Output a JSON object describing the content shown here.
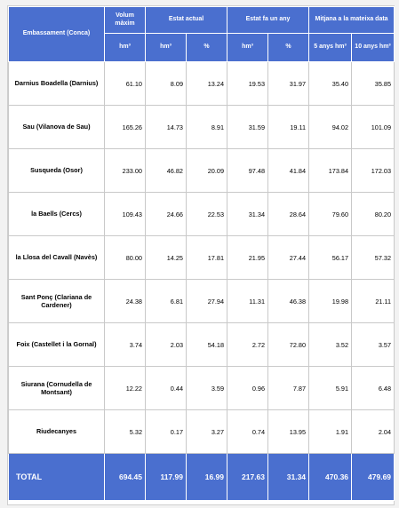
{
  "header": {
    "reservoir": "Embassament (Conca)",
    "max_volume": "Volum màxim",
    "current_state": "Estat actual",
    "year_ago": "Estat fa un any",
    "average": "Mitjana a la mateixa data",
    "unit_hm3": "hm³",
    "unit_pct": "%",
    "avg_5y": "5 anys hm³",
    "avg_10y": "10 anys hm³"
  },
  "rows": [
    {
      "name": "Darnius Boadella (Darnius)",
      "max": "61.10",
      "cur_hm3": "8.09",
      "cur_pct": "13.24",
      "ya_hm3": "19.53",
      "ya_pct": "31.97",
      "avg5": "35.40",
      "avg10": "35.85"
    },
    {
      "name": "Sau (Vilanova de Sau)",
      "max": "165.26",
      "cur_hm3": "14.73",
      "cur_pct": "8.91",
      "ya_hm3": "31.59",
      "ya_pct": "19.11",
      "avg5": "94.02",
      "avg10": "101.09"
    },
    {
      "name": "Susqueda (Osor)",
      "max": "233.00",
      "cur_hm3": "46.82",
      "cur_pct": "20.09",
      "ya_hm3": "97.48",
      "ya_pct": "41.84",
      "avg5": "173.84",
      "avg10": "172.03"
    },
    {
      "name": "la Baells (Cercs)",
      "max": "109.43",
      "cur_hm3": "24.66",
      "cur_pct": "22.53",
      "ya_hm3": "31.34",
      "ya_pct": "28.64",
      "avg5": "79.60",
      "avg10": "80.20"
    },
    {
      "name": "la Llosa del Cavall (Navès)",
      "max": "80.00",
      "cur_hm3": "14.25",
      "cur_pct": "17.81",
      "ya_hm3": "21.95",
      "ya_pct": "27.44",
      "avg5": "56.17",
      "avg10": "57.32"
    },
    {
      "name": "Sant Ponç (Clariana de Cardener)",
      "max": "24.38",
      "cur_hm3": "6.81",
      "cur_pct": "27.94",
      "ya_hm3": "11.31",
      "ya_pct": "46.38",
      "avg5": "19.98",
      "avg10": "21.11"
    },
    {
      "name": "Foix (Castellet i la Gornal)",
      "max": "3.74",
      "cur_hm3": "2.03",
      "cur_pct": "54.18",
      "ya_hm3": "2.72",
      "ya_pct": "72.80",
      "avg5": "3.52",
      "avg10": "3.57"
    },
    {
      "name": "Siurana (Cornudella de Montsant)",
      "max": "12.22",
      "cur_hm3": "0.44",
      "cur_pct": "3.59",
      "ya_hm3": "0.96",
      "ya_pct": "7.87",
      "avg5": "5.91",
      "avg10": "6.48"
    },
    {
      "name": "Riudecanyes",
      "max": "5.32",
      "cur_hm3": "0.17",
      "cur_pct": "3.27",
      "ya_hm3": "0.74",
      "ya_pct": "13.95",
      "avg5": "1.91",
      "avg10": "2.04"
    }
  ],
  "total": {
    "label": "TOTAL",
    "max": "694.45",
    "cur_hm3": "117.99",
    "cur_pct": "16.99",
    "ya_hm3": "217.63",
    "ya_pct": "31.34",
    "avg5": "470.36",
    "avg10": "479.69"
  },
  "colors": {
    "header_bg": "#4a6fcf",
    "header_text": "#ffffff",
    "border": "#c9c9c9"
  }
}
